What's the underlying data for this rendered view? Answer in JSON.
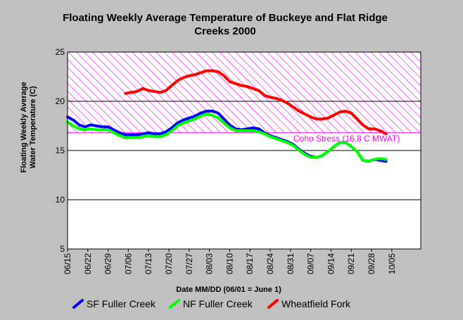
{
  "chart_data": {
    "type": "line",
    "title_lines": [
      "Floating Weekly Average Temperature of Buckeye and Flat Ridge",
      "Creeks 2000"
    ],
    "ylabel_lines": [
      "Floating Weekly Average",
      "Water Temperature (C)"
    ],
    "xlabel": "Date MM/DD (06/01 = June 1)",
    "ylim": [
      5,
      25
    ],
    "yticks": [
      "5",
      "10",
      "15",
      "20",
      "25"
    ],
    "xlim": [
      "06/15",
      "10/15"
    ],
    "xticks": [
      "06/15",
      "06/22",
      "06/29",
      "07/06",
      "07/13",
      "07/20",
      "07/27",
      "08/03",
      "08/10",
      "08/17",
      "08/24",
      "08/31",
      "09/07",
      "09/14",
      "09/21",
      "09/28",
      "10/05"
    ],
    "stress_band": {
      "from": 16.8,
      "to": 25,
      "label": "Coho Stress (16.8 C MWAT)",
      "color": "#ff00ff"
    },
    "series": [
      {
        "name": "SF Fuller Creek",
        "color": "#0000ff",
        "x": [
          "06/15",
          "06/17",
          "06/19",
          "06/21",
          "06/23",
          "06/25",
          "06/27",
          "06/29",
          "07/01",
          "07/03",
          "07/05",
          "07/07",
          "07/09",
          "07/11",
          "07/13",
          "07/15",
          "07/17",
          "07/19",
          "07/21",
          "07/23",
          "07/25",
          "07/27",
          "07/29",
          "07/31",
          "08/02",
          "08/04",
          "08/06",
          "08/08",
          "08/10",
          "08/12",
          "08/14",
          "08/16",
          "08/18",
          "08/20",
          "08/22",
          "08/24",
          "08/26",
          "08/28",
          "08/30",
          "09/01",
          "09/03",
          "09/05",
          "09/07",
          "09/09",
          "09/11",
          "09/13",
          "09/15",
          "09/17",
          "09/19",
          "09/21",
          "09/23",
          "09/25",
          "09/27",
          "09/29",
          "10/01",
          "10/03"
        ],
        "values": [
          18.4,
          18.1,
          17.6,
          17.4,
          17.6,
          17.5,
          17.4,
          17.4,
          17.1,
          16.8,
          16.6,
          16.6,
          16.6,
          16.7,
          16.8,
          16.7,
          16.7,
          16.9,
          17.3,
          17.8,
          18.1,
          18.3,
          18.5,
          18.8,
          19.0,
          19.0,
          18.8,
          18.2,
          17.6,
          17.2,
          17.1,
          17.2,
          17.3,
          17.2,
          16.8,
          16.5,
          16.3,
          16.1,
          15.9,
          15.6,
          15.1,
          14.7,
          14.4,
          14.3,
          14.5,
          14.9,
          15.4,
          15.8,
          15.8,
          15.4,
          14.9,
          14.0,
          13.9,
          14.1,
          14.0,
          13.9
        ]
      },
      {
        "name": "NF Fuller Creek",
        "color": "#00ff00",
        "x": [
          "06/15",
          "06/17",
          "06/19",
          "06/21",
          "06/23",
          "06/25",
          "06/27",
          "06/29",
          "07/01",
          "07/03",
          "07/05",
          "07/07",
          "07/09",
          "07/11",
          "07/13",
          "07/15",
          "07/17",
          "07/19",
          "07/21",
          "07/23",
          "07/25",
          "07/27",
          "07/29",
          "07/31",
          "08/02",
          "08/04",
          "08/06",
          "08/08",
          "08/10",
          "08/12",
          "08/14",
          "08/16",
          "08/18",
          "08/20",
          "08/22",
          "08/24",
          "08/26",
          "08/28",
          "08/30",
          "09/01",
          "09/03",
          "09/05",
          "09/07",
          "09/09",
          "09/11",
          "09/13",
          "09/15",
          "09/17",
          "09/19",
          "09/21",
          "09/23",
          "09/25",
          "09/27",
          "09/29",
          "10/01",
          "10/03"
        ],
        "values": [
          17.9,
          17.5,
          17.2,
          17.1,
          17.2,
          17.1,
          17.1,
          17.1,
          16.8,
          16.5,
          16.3,
          16.3,
          16.3,
          16.4,
          16.5,
          16.4,
          16.4,
          16.6,
          17.0,
          17.5,
          17.8,
          18.0,
          18.2,
          18.5,
          18.7,
          18.6,
          18.3,
          17.8,
          17.3,
          17.0,
          17.0,
          17.0,
          17.0,
          16.9,
          16.7,
          16.4,
          16.2,
          16.0,
          15.8,
          15.5,
          15.0,
          14.6,
          14.3,
          14.3,
          14.5,
          14.9,
          15.4,
          15.8,
          15.8,
          15.4,
          14.9,
          14.0,
          13.9,
          14.1,
          14.2,
          14.1
        ]
      },
      {
        "name": "Wheatfield Fork",
        "color": "#ff0000",
        "x": [
          "07/05",
          "07/07",
          "07/09",
          "07/11",
          "07/13",
          "07/15",
          "07/17",
          "07/19",
          "07/21",
          "07/23",
          "07/25",
          "07/27",
          "07/29",
          "07/31",
          "08/02",
          "08/04",
          "08/06",
          "08/08",
          "08/10",
          "08/12",
          "08/14",
          "08/16",
          "08/18",
          "08/20",
          "08/22",
          "08/24",
          "08/26",
          "08/28",
          "08/30",
          "09/01",
          "09/03",
          "09/05",
          "09/07",
          "09/09",
          "09/11",
          "09/13",
          "09/15",
          "09/17",
          "09/19",
          "09/21",
          "09/23",
          "09/25",
          "09/27",
          "09/29",
          "10/01",
          "10/03"
        ],
        "values": [
          20.8,
          20.9,
          21.0,
          21.3,
          21.1,
          21.0,
          20.9,
          21.1,
          21.6,
          22.1,
          22.4,
          22.6,
          22.7,
          22.9,
          23.1,
          23.1,
          23.0,
          22.6,
          22.0,
          21.8,
          21.6,
          21.5,
          21.3,
          21.1,
          20.6,
          20.4,
          20.3,
          20.1,
          19.8,
          19.4,
          19.0,
          18.7,
          18.4,
          18.2,
          18.2,
          18.3,
          18.6,
          18.9,
          19.0,
          18.8,
          18.2,
          17.6,
          17.2,
          17.2,
          17.0,
          16.7
        ]
      }
    ],
    "legend": {
      "placement": "bottom"
    }
  }
}
